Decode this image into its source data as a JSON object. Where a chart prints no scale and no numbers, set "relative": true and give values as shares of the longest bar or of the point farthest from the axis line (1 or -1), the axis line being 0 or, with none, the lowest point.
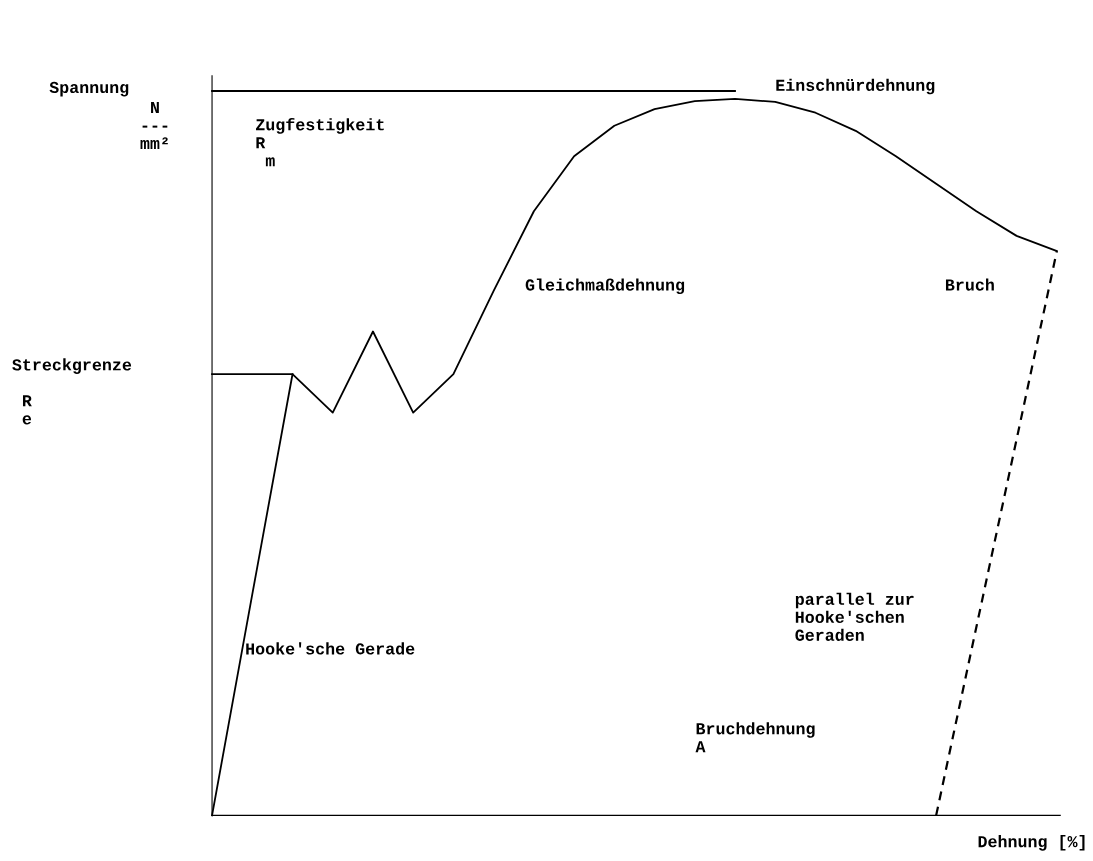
{
  "chart_data": {
    "type": "line",
    "relative": true,
    "xlabel": "Dehnung [%]",
    "categories": [
      null,
      null,
      null,
      null,
      null,
      null,
      null,
      null,
      null,
      null,
      null,
      null,
      null,
      null,
      null,
      null,
      null,
      null,
      null,
      null,
      null,
      null
    ],
    "series": [
      {
        "color": "#000000",
        "line_style": "solid",
        "values": [
          0,
          0.305,
          0.609,
          0.556,
          0.668,
          0.556,
          0.609,
          0.724,
          0.834,
          0.91,
          0.952,
          0.975,
          0.986,
          0.989,
          0.985,
          0.97,
          0.945,
          0.91,
          0.872,
          0.834,
          0.8,
          0.779
        ]
      },
      {
        "color": "#000000",
        "line_style": "dashed",
        "values": [
          null,
          null,
          null,
          null,
          null,
          null,
          null,
          null,
          null,
          null,
          null,
          null,
          null,
          null,
          null,
          null,
          null,
          null,
          0,
          0.26,
          0.519,
          0.779
        ]
      },
      {
        "color": "#000000",
        "line_style": "solid",
        "values": [
          0.609,
          0.609,
          0.609,
          null,
          null,
          null,
          null,
          null,
          null,
          null,
          null,
          null,
          null,
          null,
          null,
          null,
          null,
          null,
          null,
          null,
          null,
          null
        ]
      },
      {
        "color": "#000000",
        "line_style": "solid",
        "values": [
          1,
          1,
          1,
          1,
          1,
          1,
          1,
          1,
          1,
          1,
          1,
          1,
          1,
          1,
          null,
          null,
          null,
          null,
          null,
          null,
          null,
          null
        ]
      }
    ],
    "annotations": [
      "Einschnürdehnung",
      "Zugfestigkeit\nR\n m",
      "Gleichmaßdehnung",
      "Bruch",
      "Streckgrenze\n\n R\n e",
      "Hooke'sche Gerade",
      "parallel zur\nHooke'schen\nGeraden",
      "Bruchdehnung\nA",
      " N\n---\nmm²",
      "Spannung"
    ]
  }
}
